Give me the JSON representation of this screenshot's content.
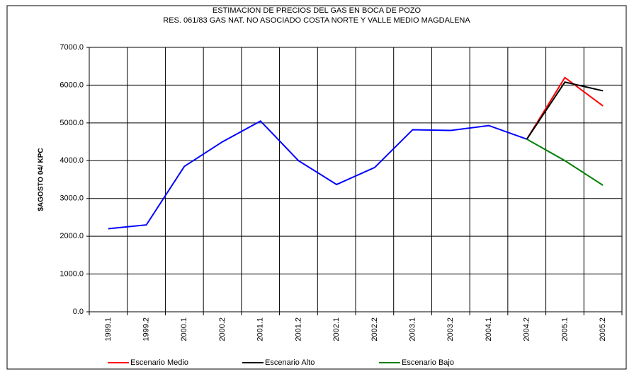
{
  "chart_data": {
    "type": "line",
    "title": "ESTIMACION DE PRECIOS DEL GAS EN BOCA DE POZO",
    "subtitle": "RES. 061/83 GAS NAT. NO ASOCIADO COSTA NORTE Y VALLE MEDIO MAGDALENA",
    "y_label": "$AGOSTO 04/ KPC",
    "categories": [
      "1999.1",
      "1999.2",
      "2000.1",
      "2000.2",
      "2001.1",
      "2001.2",
      "2002.1",
      "2002.2",
      "2003.1",
      "2003.2",
      "2004.1",
      "2004.2",
      "2005.1",
      "2005.2"
    ],
    "series": [
      {
        "color": "#0000ff",
        "values": [
          2200,
          2300,
          3850,
          4500,
          5050,
          4000,
          3370,
          3820,
          4820,
          4800,
          4930,
          4570,
          null,
          null
        ]
      },
      {
        "name": "Escenario Medio",
        "color": "#ff0000",
        "values": [
          null,
          null,
          null,
          null,
          null,
          null,
          null,
          null,
          null,
          null,
          null,
          4570,
          6200,
          5450
        ]
      },
      {
        "name": "Escenario Alto",
        "color": "#000000",
        "values": [
          null,
          null,
          null,
          null,
          null,
          null,
          null,
          null,
          null,
          null,
          null,
          4570,
          6080,
          5850
        ]
      },
      {
        "name": "Escenario Bajo",
        "color": "#008000",
        "values": [
          null,
          null,
          null,
          null,
          null,
          null,
          null,
          null,
          null,
          null,
          null,
          4570,
          4000,
          3350
        ]
      }
    ],
    "ylim": [
      0,
      7000
    ],
    "yticks": [
      {
        "value": 0,
        "label": "0.0"
      },
      {
        "value": 1000,
        "label": "1000.0"
      },
      {
        "value": 2000,
        "label": "2000.0"
      },
      {
        "value": 3000,
        "label": "3000.0"
      },
      {
        "value": 4000,
        "label": "4000.0"
      },
      {
        "value": 5000,
        "label": "5000.0"
      },
      {
        "value": 6000,
        "label": "6000.0"
      },
      {
        "value": 7000,
        "label": "7000.0"
      }
    ],
    "grid": true,
    "legend": "bottom"
  }
}
